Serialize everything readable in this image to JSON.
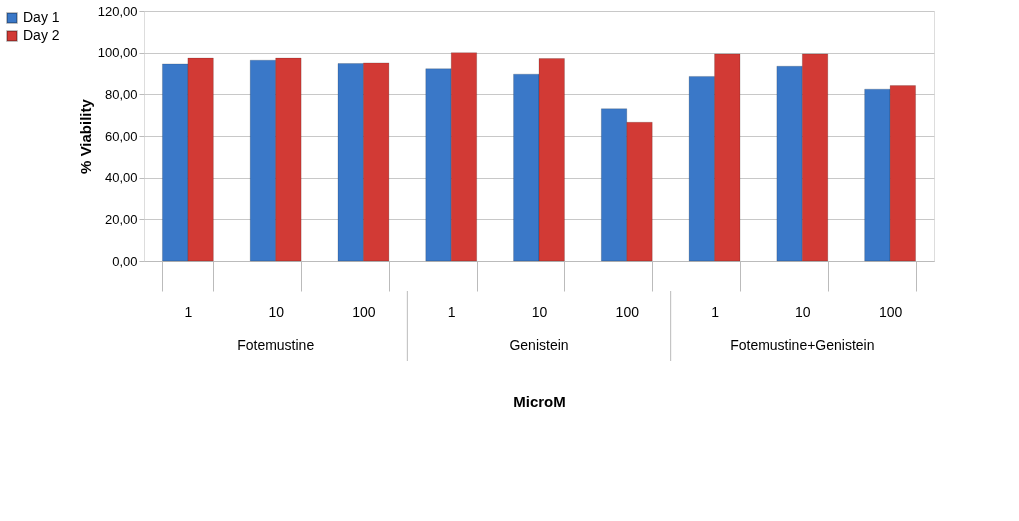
{
  "chart_data": {
    "type": "bar",
    "xlabel": "MicroM",
    "ylabel": "% Viability",
    "categories": [
      "1",
      "10",
      "100",
      "1",
      "10",
      "100",
      "1",
      "10",
      "100"
    ],
    "annotations": [
      "Fotemustine",
      "Genistein",
      "Fotemustine+Genistein"
    ],
    "series": [
      {
        "name": "Day 1",
        "color": "#3a78c8",
        "values": [
          94.6,
          96.4,
          94.8,
          92.3,
          89.7,
          73.1,
          88.6,
          93.5,
          82.5
        ]
      },
      {
        "name": "Day 2",
        "color": "#d23a35",
        "values": [
          97.4,
          97.4,
          95.1,
          100.0,
          97.2,
          66.6,
          99.4,
          99.4,
          84.2
        ]
      }
    ],
    "ylim": [
      0,
      120
    ],
    "yticks": [
      {
        "value": 0,
        "label": "0,00"
      },
      {
        "value": 20,
        "label": "20,00"
      },
      {
        "value": 40,
        "label": "40,00"
      },
      {
        "value": 60,
        "label": "60,00"
      },
      {
        "value": 80,
        "label": "80,00"
      },
      {
        "value": 100,
        "label": "100,00"
      },
      {
        "value": 120,
        "label": "120,00"
      }
    ],
    "grid": "y",
    "legend": "left"
  }
}
